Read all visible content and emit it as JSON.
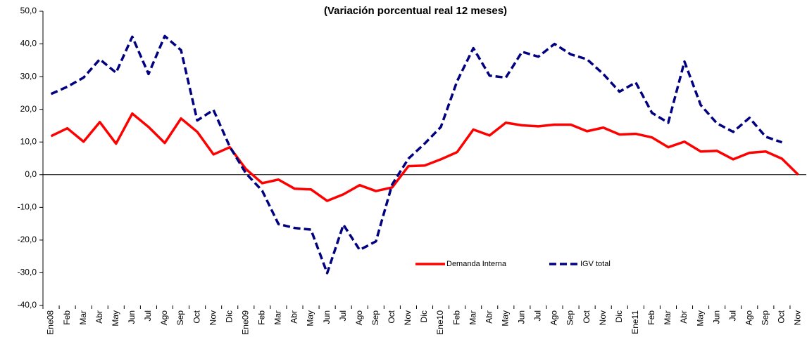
{
  "chart_data": {
    "type": "line",
    "title": "(Variación porcentual real 12 meses)",
    "categories": [
      "Ene08",
      "Feb",
      "Mar",
      "Abr",
      "May",
      "Jun",
      "Jul",
      "Ago",
      "Sep",
      "Oct",
      "Nov",
      "Dic",
      "Ene09",
      "Feb",
      "Mar",
      "Abr",
      "May",
      "Jun",
      "Jul",
      "Ago",
      "Sep",
      "Oct",
      "Nov",
      "Dic",
      "Ene10",
      "Feb",
      "Mar",
      "Abr",
      "May",
      "Jun",
      "Jul",
      "Ago",
      "Sep",
      "Oct",
      "Nov",
      "Dic",
      "Ene11",
      "Feb",
      "Mar",
      "Abr",
      "May",
      "Jun",
      "Jul",
      "Ago",
      "Sep",
      "Oct",
      "Nov"
    ],
    "series": [
      {
        "name": "Demanda Interna",
        "color": "#ff0000",
        "dash": false,
        "values": [
          11.8,
          14.2,
          10.1,
          16.1,
          9.5,
          18.7,
          14.6,
          9.7,
          17.2,
          13.1,
          6.2,
          8.4,
          1.7,
          -2.6,
          -1.5,
          -4.3,
          -4.5,
          -8.0,
          -6.0,
          -3.2,
          -5.0,
          -3.9,
          2.6,
          2.8,
          4.7,
          6.9,
          13.8,
          12.0,
          15.9,
          15.1,
          14.8,
          15.3,
          15.3,
          13.3,
          14.4,
          12.3,
          12.5,
          11.4,
          8.4,
          10.1,
          7.1,
          7.3,
          4.7,
          6.7,
          7.1,
          4.9,
          0
        ]
      },
      {
        "name": "IGV total",
        "color": "#000080",
        "dash": true,
        "values": [
          24.7,
          26.9,
          29.7,
          35.3,
          31.2,
          42.2,
          30.8,
          42.4,
          38.1,
          16.6,
          19.8,
          8.6,
          0.4,
          -4.9,
          -15.1,
          -16.3,
          -16.8,
          -30.1,
          -15.3,
          -23.0,
          -20.4,
          -3.0,
          4.9,
          9.5,
          14.6,
          28.6,
          38.7,
          30.3,
          29.7,
          37.6,
          36.1,
          40.0,
          36.8,
          35.3,
          30.8,
          25.4,
          28.2,
          18.9,
          15.9,
          34.6,
          21.3,
          15.7,
          13.1,
          17.4,
          11.6,
          9.9,
          null
        ]
      }
    ],
    "ylim": [
      -40,
      50
    ],
    "yticks": [
      {
        "value": -40,
        "label": "-40,0"
      },
      {
        "value": -30,
        "label": "-30,0"
      },
      {
        "value": -20,
        "label": "-20,0"
      },
      {
        "value": -10,
        "label": "-10,0"
      },
      {
        "value": 0,
        "label": "0,0"
      },
      {
        "value": 10,
        "label": "10,0"
      },
      {
        "value": 20,
        "label": "20,0"
      },
      {
        "value": 30,
        "label": "30,0"
      },
      {
        "value": 40,
        "label": "40,0"
      },
      {
        "value": 50,
        "label": "50,0"
      }
    ],
    "grid": false
  }
}
